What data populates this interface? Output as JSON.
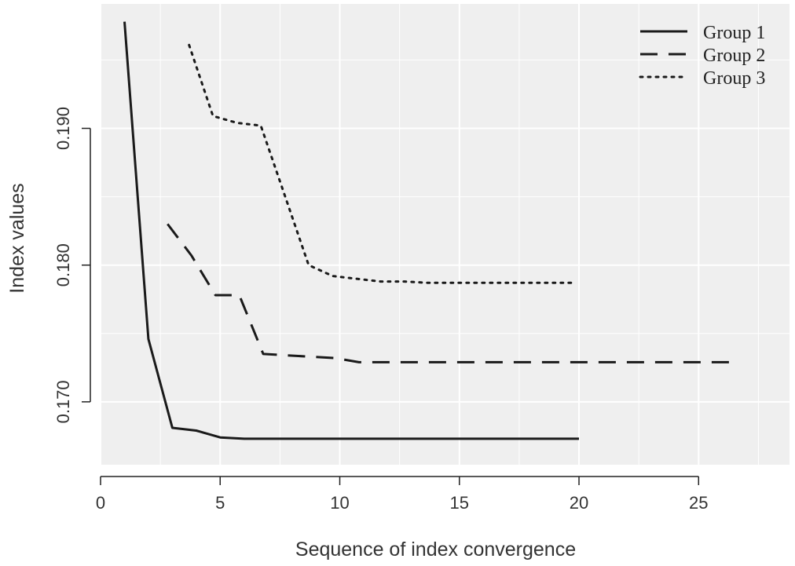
{
  "chart_data": {
    "type": "line",
    "title": "",
    "xlabel": "Sequence of index convergence",
    "ylabel": "Index values",
    "xlim": [
      0,
      28.8
    ],
    "ylim": [
      0.1654,
      0.1991
    ],
    "xticks": [
      0,
      5,
      10,
      15,
      20,
      25
    ],
    "xtick_labels": [
      "0",
      "5",
      "10",
      "15",
      "20",
      "25"
    ],
    "yticks": [
      0.17,
      0.18,
      0.19
    ],
    "ytick_labels": [
      "0.170",
      "0.180",
      "0.190"
    ],
    "grid": true,
    "legend_position": "top-right",
    "colors": {
      "panel": "#efefef",
      "grid": "#ffffff",
      "line": "#1a1a1a",
      "axis": "#222222"
    },
    "series": [
      {
        "name": "Group 1",
        "style": "solid",
        "x": [
          1,
          2,
          3,
          4,
          5,
          6,
          7,
          8,
          9,
          10,
          11,
          12,
          13,
          14,
          15,
          16,
          17,
          18,
          19,
          20
        ],
        "y": [
          0.1978,
          0.1746,
          0.1681,
          0.1679,
          0.1674,
          0.1673,
          0.1673,
          0.1673,
          0.1673,
          0.1673,
          0.1673,
          0.1673,
          0.1673,
          0.1673,
          0.1673,
          0.1673,
          0.1673,
          0.1673,
          0.1673,
          0.1673
        ]
      },
      {
        "name": "Group 2",
        "style": "dashed",
        "x": [
          2.8,
          3.8,
          4.8,
          5.8,
          6.8,
          7.8,
          8.8,
          9.8,
          10.8,
          11.8,
          12.8,
          13.8,
          14.8,
          15.8,
          16.8,
          17.8,
          18.8,
          19.8,
          20.8,
          21.8,
          22.8,
          23.8,
          24.8,
          25.8,
          26.7
        ],
        "y": [
          0.183,
          0.1807,
          0.1778,
          0.1778,
          0.1735,
          0.1734,
          0.1733,
          0.1732,
          0.1729,
          0.1729,
          0.1729,
          0.1729,
          0.1729,
          0.1729,
          0.1729,
          0.1729,
          0.1729,
          0.1729,
          0.1729,
          0.1729,
          0.1729,
          0.1729,
          0.1729,
          0.1729,
          0.1729
        ]
      },
      {
        "name": "Group 3",
        "style": "dotted",
        "x": [
          3.7,
          4.7,
          5.7,
          6.7,
          7.7,
          8.7,
          9.7,
          10.7,
          11.7,
          12.7,
          13.7,
          14.7,
          15.7,
          16.7,
          17.7,
          18.7,
          19.7
        ],
        "y": [
          0.1961,
          0.1909,
          0.1904,
          0.1902,
          0.1851,
          0.18,
          0.1792,
          0.179,
          0.1788,
          0.1788,
          0.1787,
          0.1787,
          0.1787,
          0.1787,
          0.1787,
          0.1787,
          0.1787
        ]
      }
    ]
  }
}
